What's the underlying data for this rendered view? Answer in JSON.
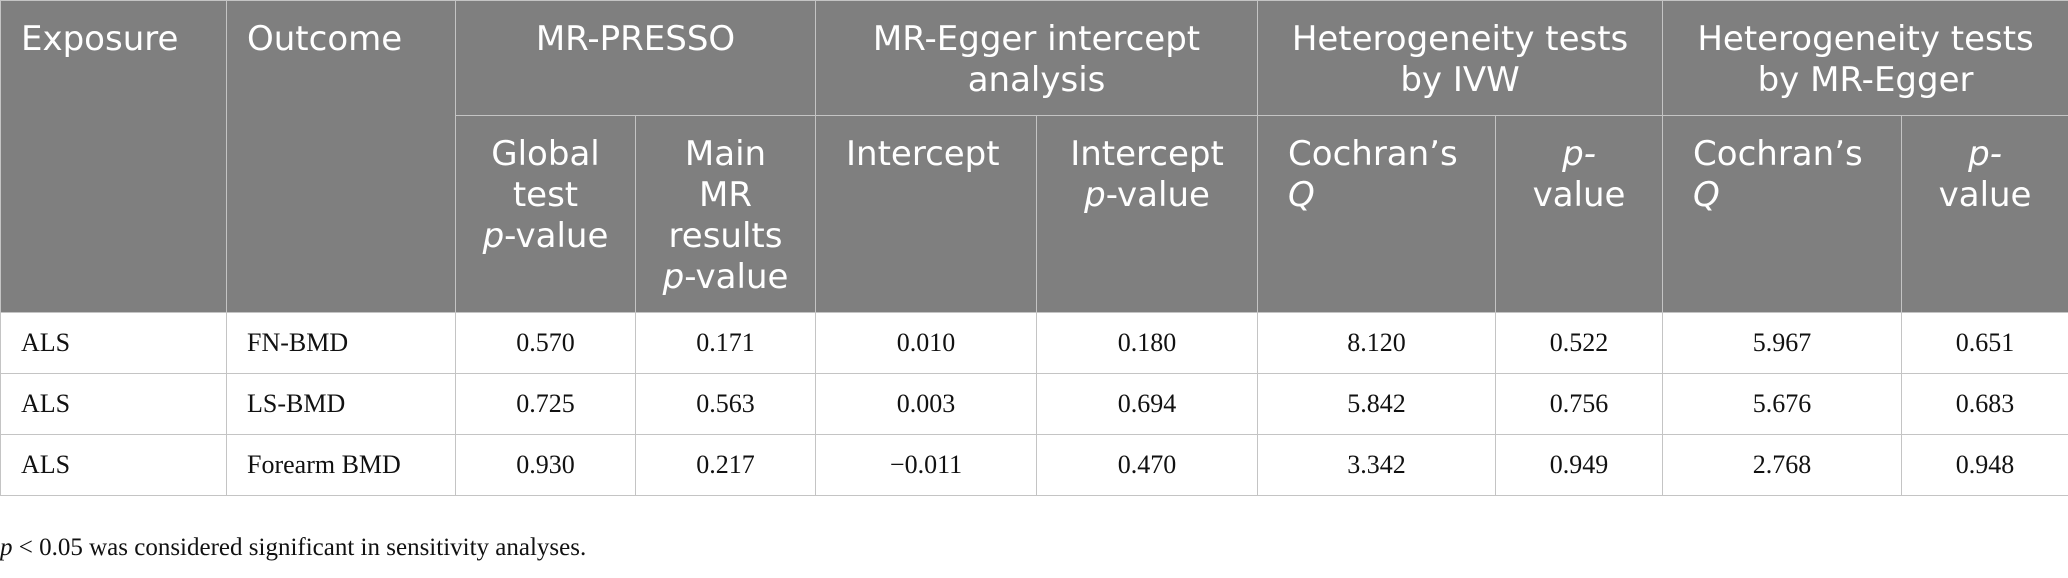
{
  "table": {
    "headers": {
      "exposure": "Exposure",
      "outcome": "Outcome",
      "mr_presso": "MR-PRESSO",
      "mr_egger_intercept": "MR-Egger intercept analysis",
      "het_ivw_line1": "Heterogeneity tests",
      "het_ivw_line2": "by IVW",
      "het_egger_line1": "Heterogeneity tests",
      "het_egger_line2": "by MR-Egger",
      "global_test_line1": "Global",
      "global_test_line2": "test",
      "p_italic": "p",
      "value_suffix": "-value",
      "value_word": "value",
      "p_hyphen": "p-",
      "main_mr_line1": "Main",
      "main_mr_line2": "MR",
      "main_mr_line3": "results",
      "intercept": "Intercept",
      "intercept_p_line1": "Intercept",
      "cochrans_line1": "Cochran’s",
      "cochrans_q": "Q"
    },
    "rows": [
      {
        "exposure": "ALS",
        "outcome": "FN-BMD",
        "global_p": "0.570",
        "main_p": "0.171",
        "intercept": "0.010",
        "intercept_p": "0.180",
        "ivw_q": "8.120",
        "ivw_p": "0.522",
        "egger_q": "5.967",
        "egger_p": "0.651"
      },
      {
        "exposure": "ALS",
        "outcome": "LS-BMD",
        "global_p": "0.725",
        "main_p": "0.563",
        "intercept": "0.003",
        "intercept_p": "0.694",
        "ivw_q": "5.842",
        "ivw_p": "0.756",
        "egger_q": "5.676",
        "egger_p": "0.683"
      },
      {
        "exposure": "ALS",
        "outcome": "Forearm BMD",
        "global_p": "0.930",
        "main_p": "0.217",
        "intercept": "−0.011",
        "intercept_p": "0.470",
        "ivw_q": "3.342",
        "ivw_p": "0.949",
        "egger_q": "2.768",
        "egger_p": "0.948"
      }
    ]
  },
  "footnote": {
    "p_italic": "p",
    "text": " < 0.05 was considered significant in sensitivity analyses."
  },
  "colors": {
    "header_bg": "#7f7f7f",
    "header_text": "#ffffff",
    "border": "#c4c4c4"
  }
}
